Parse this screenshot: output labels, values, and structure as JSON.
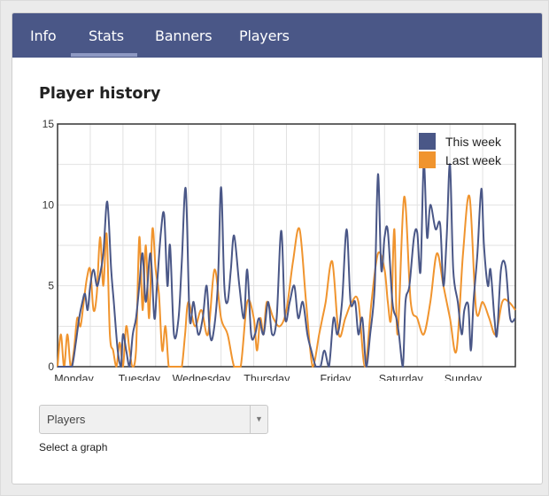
{
  "tabs": [
    {
      "label": "Info",
      "active": false
    },
    {
      "label": "Stats",
      "active": true
    },
    {
      "label": "Banners",
      "active": false
    },
    {
      "label": "Players",
      "active": false
    }
  ],
  "section_title": "Player history",
  "graph_select": {
    "value": "Players",
    "hint": "Select a graph"
  },
  "colors": {
    "this_week": "#4a5787",
    "last_week": "#f0942e",
    "tab_bar": "#4a5787"
  },
  "chart_data": {
    "type": "line",
    "ylim": [
      0,
      15
    ],
    "yticks": [
      0,
      5,
      10,
      15
    ],
    "xticks": [
      "Monday",
      "Tuesday",
      "Wednesday",
      "Thursday",
      "Friday",
      "Saturday",
      "Sunday"
    ],
    "legend": "top-right",
    "grid": true,
    "series": [
      {
        "name": "This week",
        "color": "#4a5787",
        "x": [
          0,
          0.08,
          0.15,
          0.22,
          0.28,
          0.33,
          0.38,
          0.42,
          0.46,
          0.5,
          0.55,
          0.6,
          0.64,
          0.7,
          0.76,
          0.82,
          0.86,
          0.92,
          0.97,
          1.0,
          1.05,
          1.1,
          1.15,
          1.2,
          1.25,
          1.3,
          1.35,
          1.42,
          1.48,
          1.52,
          1.58,
          1.63,
          1.68,
          1.72,
          1.78,
          1.85,
          1.9,
          1.96,
          2.02,
          2.08,
          2.15,
          2.22,
          2.28,
          2.33,
          2.38,
          2.45,
          2.5,
          2.55,
          2.6,
          2.65,
          2.7,
          2.78,
          2.85,
          2.9,
          2.96,
          3.02,
          3.08,
          3.15,
          3.22,
          3.28,
          3.35,
          3.42,
          3.48,
          3.55,
          3.62,
          3.68,
          3.75,
          3.82,
          3.88,
          3.95,
          4.02,
          4.08,
          4.15,
          4.22,
          4.28,
          4.35,
          4.42,
          4.48,
          4.55,
          4.6,
          4.66,
          4.72,
          4.78,
          4.85,
          4.9,
          4.95,
          5.0,
          5.05,
          5.12,
          5.18,
          5.22,
          5.28,
          5.32,
          5.38,
          5.45,
          5.5,
          5.55,
          5.6,
          5.65,
          5.7,
          5.78,
          5.85,
          5.9,
          5.95,
          6.0,
          6.05,
          6.12,
          6.18,
          6.22,
          6.28,
          6.32,
          6.36,
          6.42,
          6.48,
          6.52,
          6.58,
          6.62,
          6.68,
          6.72,
          6.78,
          6.85,
          6.92,
          7.0
        ],
        "y": [
          0,
          0,
          0,
          0,
          1.5,
          3,
          4,
          4.5,
          3.5,
          5,
          6,
          5,
          5.5,
          7,
          10.2,
          6,
          4,
          1,
          0,
          2,
          1,
          0,
          2,
          3,
          5,
          7,
          4,
          7,
          3,
          5,
          8.3,
          9.4,
          5,
          7.5,
          2,
          3,
          6.5,
          11,
          3,
          4,
          2,
          3,
          5,
          2,
          2,
          5,
          11.1,
          5,
          4,
          6,
          8.1,
          5,
          3,
          6,
          2,
          2,
          3,
          2,
          4,
          2,
          3,
          8.4,
          3,
          4,
          5,
          3,
          4,
          2,
          1,
          0,
          0,
          1,
          0,
          3,
          2,
          4,
          8.5,
          4,
          4,
          2,
          3,
          0,
          2,
          5,
          11.9,
          6,
          8,
          8.4,
          4,
          3,
          2,
          0,
          4,
          5,
          8,
          8.3,
          5.9,
          12.6,
          8,
          10,
          8.5,
          8.8,
          5,
          8,
          12.5,
          6,
          4,
          2,
          3.5,
          3.8,
          1,
          4,
          7,
          11,
          7.5,
          5,
          6,
          3,
          2,
          6,
          6.2,
          3,
          3
        ]
      },
      {
        "name": "Last week",
        "color": "#f0942e",
        "x": [
          0,
          0.05,
          0.1,
          0.15,
          0.2,
          0.25,
          0.3,
          0.35,
          0.4,
          0.45,
          0.5,
          0.55,
          0.6,
          0.65,
          0.7,
          0.75,
          0.8,
          0.85,
          0.9,
          0.95,
          1.0,
          1.05,
          1.1,
          1.15,
          1.2,
          1.25,
          1.3,
          1.35,
          1.4,
          1.45,
          1.5,
          1.55,
          1.6,
          1.65,
          1.7,
          1.75,
          1.8,
          1.85,
          1.9,
          1.95,
          2.0,
          2.1,
          2.2,
          2.3,
          2.4,
          2.5,
          2.6,
          2.7,
          2.8,
          2.9,
          3.0,
          3.05,
          3.1,
          3.15,
          3.2,
          3.3,
          3.4,
          3.5,
          3.6,
          3.7,
          3.8,
          3.9,
          4.0,
          4.05,
          4.1,
          4.2,
          4.3,
          4.4,
          4.5,
          4.6,
          4.7,
          4.8,
          4.9,
          5.0,
          5.05,
          5.1,
          5.15,
          5.2,
          5.3,
          5.4,
          5.5,
          5.6,
          5.7,
          5.8,
          5.9,
          6.0,
          6.1,
          6.2,
          6.3,
          6.4,
          6.5,
          6.6,
          6.7,
          6.8,
          6.9,
          7.0
        ],
        "y": [
          0,
          2,
          0,
          2,
          0,
          1,
          3,
          2.5,
          4,
          5.5,
          6,
          3.5,
          4.5,
          8,
          5,
          8.2,
          2,
          1,
          0,
          1.5,
          0,
          2.5,
          1,
          0,
          1,
          8,
          3.5,
          7.5,
          3,
          8.5,
          6,
          4.5,
          1,
          2.5,
          0,
          0,
          0,
          0,
          0,
          2,
          4,
          2.5,
          3.5,
          2,
          6,
          3,
          2,
          0,
          0,
          4,
          3,
          1,
          3,
          2,
          4,
          3,
          2.5,
          3.5,
          6.5,
          8.5,
          4,
          0,
          2,
          3,
          4,
          6.5,
          2,
          3,
          4,
          4,
          0,
          4,
          7,
          6,
          4,
          3,
          8.5,
          2,
          10.5,
          4,
          3,
          2,
          4,
          7,
          5,
          3,
          1,
          7,
          10.5,
          3.5,
          4,
          3,
          2,
          4,
          4,
          3.5
        ]
      }
    ]
  }
}
